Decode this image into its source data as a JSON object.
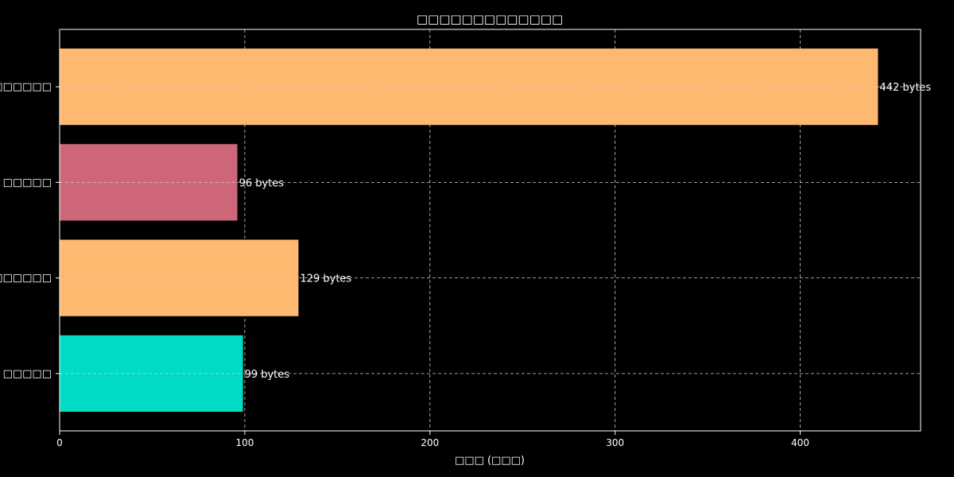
{
  "chart_data": {
    "type": "bar",
    "orientation": "horizontal",
    "title": "□□□□□□□□□□□□□",
    "xlabel": "□□□ (□□□)",
    "ylabel": "",
    "categories": [
      "□□□□□□",
      "□□□□□",
      "□□□□□□",
      "□□□□□"
    ],
    "values": [
      442,
      96,
      129,
      99
    ],
    "data_labels": [
      "442 bytes",
      "96 bytes",
      "129 bytes",
      "99 bytes"
    ],
    "bar_colors": [
      "#ffb870",
      "#cd6679",
      "#ffb870",
      "#00dbc6"
    ],
    "xlim": [
      0,
      465
    ],
    "xticks": [
      0,
      100,
      200,
      300,
      400
    ],
    "xtick_labels": [
      "0",
      "100",
      "200",
      "300",
      "400"
    ],
    "grid": true,
    "legend": "none"
  },
  "colors": {
    "background": "#000000",
    "axes": "#ffffff",
    "grid": "#cccccc",
    "text": "#ffffff"
  }
}
